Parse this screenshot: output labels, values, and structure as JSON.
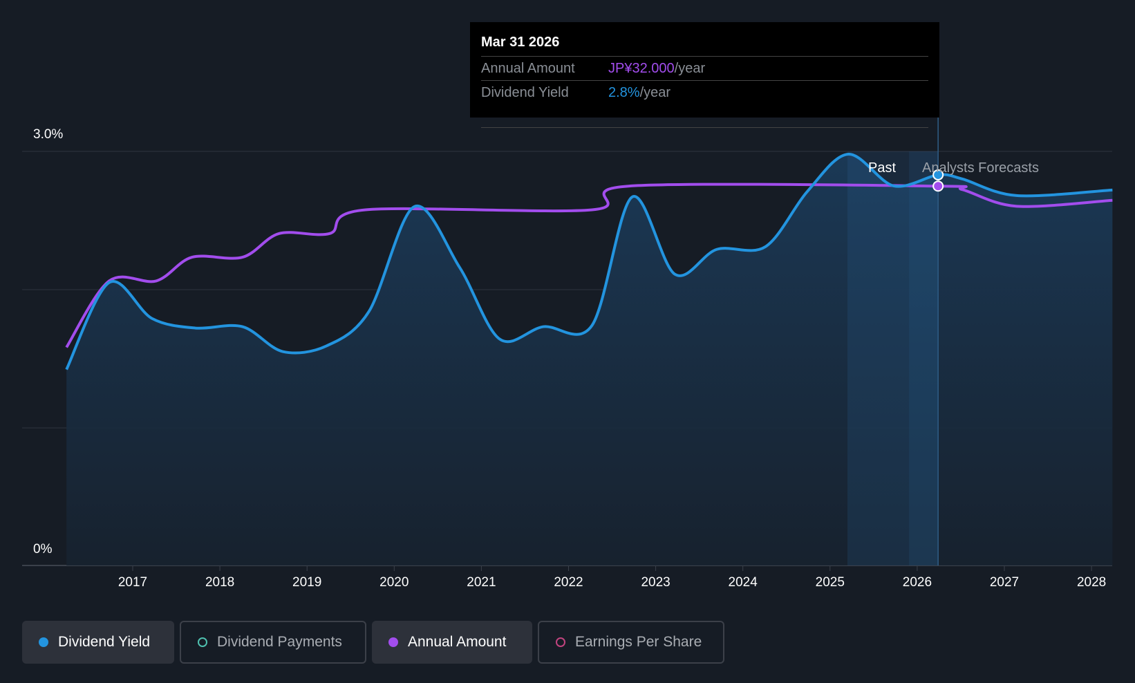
{
  "chart_data": {
    "type": "line",
    "title": "",
    "y_axis": {
      "labels": [
        "3.0%",
        "0%"
      ],
      "range_percent": [
        0,
        3.0
      ]
    },
    "x_axis": {
      "ticks": [
        "2017",
        "2018",
        "2019",
        "2020",
        "2021",
        "2022",
        "2023",
        "2024",
        "2025",
        "2026",
        "2027",
        "2028"
      ],
      "range": [
        2016.24,
        2028.24
      ]
    },
    "regions": {
      "past_label": "Past",
      "forecast_label": "Analysts Forecasts",
      "past_start": 2025.2,
      "today": 2026.24
    },
    "series": [
      {
        "name": "Dividend Yield",
        "unit": "%",
        "color": "#2394df",
        "points": [
          [
            2016.24,
            1.42
          ],
          [
            2016.73,
            2.05
          ],
          [
            2017.22,
            1.79
          ],
          [
            2017.72,
            1.72
          ],
          [
            2018.26,
            1.73
          ],
          [
            2018.72,
            1.55
          ],
          [
            2019.22,
            1.59
          ],
          [
            2019.71,
            1.84
          ],
          [
            2020.23,
            2.6
          ],
          [
            2020.75,
            2.16
          ],
          [
            2021.21,
            1.64
          ],
          [
            2021.71,
            1.73
          ],
          [
            2022.27,
            1.74
          ],
          [
            2022.73,
            2.67
          ],
          [
            2023.22,
            2.11
          ],
          [
            2023.7,
            2.29
          ],
          [
            2024.26,
            2.31
          ],
          [
            2024.74,
            2.71
          ],
          [
            2025.21,
            2.98
          ],
          [
            2025.73,
            2.75
          ],
          [
            2026.24,
            2.83
          ],
          [
            2026.52,
            2.8
          ],
          [
            2027.14,
            2.68
          ],
          [
            2028.24,
            2.72
          ]
        ]
      },
      {
        "name": "Annual Amount",
        "unit": "JPY",
        "color": "#a24ded",
        "points": [
          [
            2016.24,
            18.4
          ],
          [
            2016.73,
            24
          ],
          [
            2017.27,
            24
          ],
          [
            2017.68,
            26
          ],
          [
            2018.26,
            26
          ],
          [
            2018.68,
            28
          ],
          [
            2019.26,
            28
          ],
          [
            2019.67,
            30
          ],
          [
            2022.27,
            30
          ],
          [
            2022.69,
            32
          ],
          [
            2026.24,
            32
          ],
          [
            2026.52,
            31.7
          ],
          [
            2027.14,
            30.3
          ],
          [
            2028.24,
            30.8
          ]
        ]
      }
    ]
  },
  "tooltip": {
    "date": "Mar 31 2026",
    "rows": [
      {
        "label": "Annual Amount",
        "value": "JP¥32.000",
        "suffix": "/year",
        "color": "#a24ded"
      },
      {
        "label": "Dividend Yield",
        "value": "2.8%",
        "suffix": "/year",
        "color": "#2394df"
      }
    ]
  },
  "legend": [
    {
      "label": "Dividend Yield",
      "color": "#2394df",
      "active": true
    },
    {
      "label": "Dividend Payments",
      "color": "#4fc1b0",
      "active": false
    },
    {
      "label": "Annual Amount",
      "color": "#a24ded",
      "active": true
    },
    {
      "label": "Earnings Per Share",
      "color": "#c2447f",
      "active": false
    }
  ]
}
